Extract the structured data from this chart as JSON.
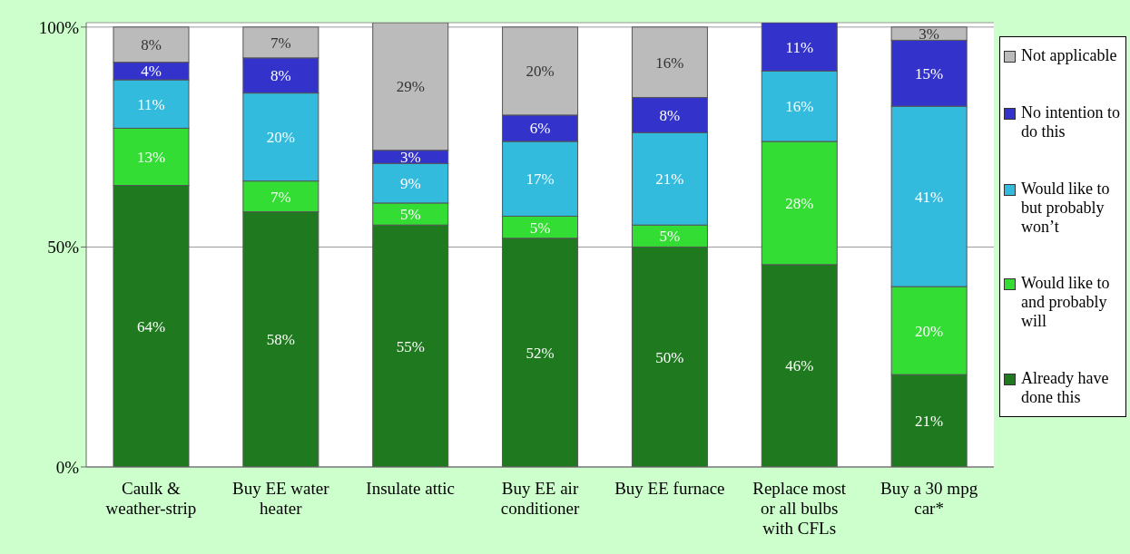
{
  "chart_data": {
    "type": "bar",
    "stacked": true,
    "categories": [
      "Caulk & weather-strip",
      "Buy EE water heater",
      "Insulate attic",
      "Buy EE air conditioner",
      "Buy EE furnace",
      "Replace most or all bulbs with CFLs",
      "Buy a 30 mpg car*"
    ],
    "series": [
      {
        "name": "Already have done this",
        "color": "#1f7a1f",
        "values": [
          64,
          58,
          55,
          52,
          50,
          46,
          21
        ],
        "value_labels": [
          "64%",
          "58%",
          "55%",
          "52%",
          "50%",
          "46%",
          "21%"
        ]
      },
      {
        "name": "Would like to and probably will",
        "color": "#33dd33",
        "values": [
          13,
          7,
          5,
          5,
          5,
          28,
          20
        ],
        "value_labels": [
          "13%",
          "7%",
          "5%",
          "5%",
          "5%",
          "28%",
          "20%"
        ]
      },
      {
        "name": "Would like to but probably won’t",
        "color": "#33bbdd",
        "values": [
          11,
          20,
          9,
          17,
          21,
          16,
          41
        ],
        "value_labels": [
          "11%",
          "20%",
          "9%",
          "17%",
          "21%",
          "16%",
          "41%"
        ]
      },
      {
        "name": "No intention to do this",
        "color": "#3333cc",
        "values": [
          4,
          8,
          3,
          6,
          8,
          11,
          15
        ],
        "value_labels": [
          "4%",
          "8%",
          "3%",
          "6%",
          "8%",
          "11%",
          "15%"
        ]
      },
      {
        "name": "Not applicable",
        "color": "#bbbbbb",
        "values": [
          8,
          7,
          29,
          20,
          16,
          null,
          3
        ],
        "value_labels": [
          "8%",
          "7%",
          "29%",
          "20%",
          "16%",
          null,
          "3%"
        ]
      }
    ],
    "ylim": [
      0,
      101
    ],
    "yticks": [
      {
        "value": 0,
        "label": "0%"
      },
      {
        "value": 50,
        "label": "50%"
      },
      {
        "value": 100,
        "label": "100%"
      }
    ],
    "grid": "y",
    "legend": "right"
  }
}
